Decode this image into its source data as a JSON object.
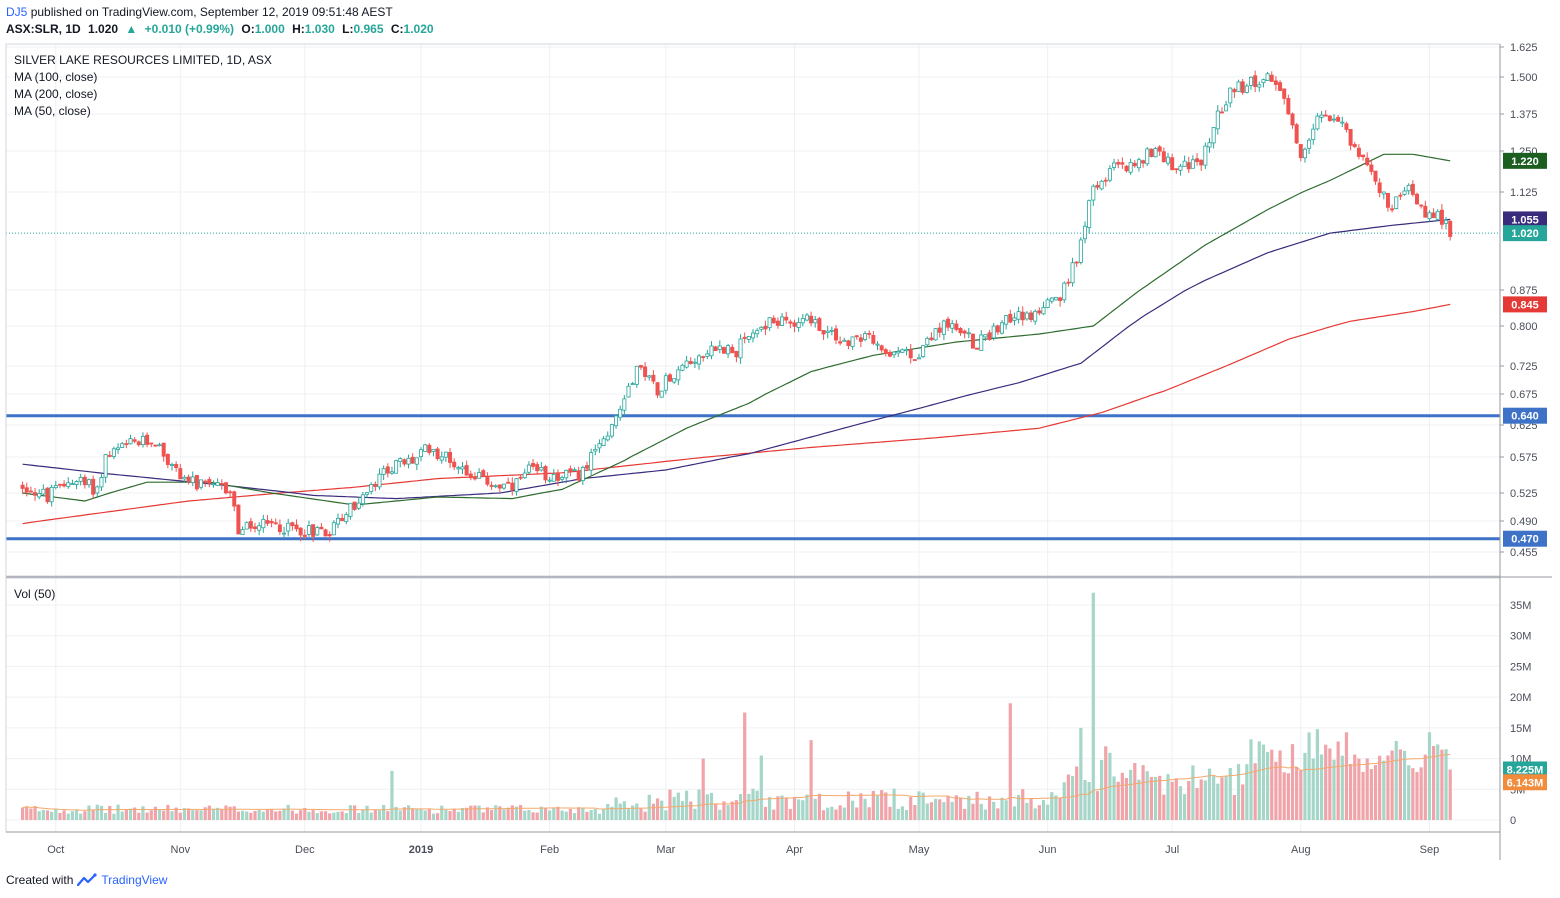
{
  "header": {
    "author": "DJ5",
    "published": "published on TradingView.com, September 12, 2019 09:51:48 AEST",
    "symbol": "ASX:SLR, 1D",
    "last": "1.020",
    "change": "+0.010 (+0.99%)",
    "o_label": "O:",
    "o": "1.000",
    "h_label": "H:",
    "h": "1.030",
    "l_label": "L:",
    "l": "0.965",
    "c_label": "C:",
    "c": "1.020"
  },
  "legend": {
    "title": "SILVER LAKE RESOURCES LIMITED, 1D, ASX",
    "ma100": "MA (100, close)",
    "ma200": "MA (200, close)",
    "ma50": "MA (50, close)",
    "volume": "Vol (50)"
  },
  "footer": {
    "created": "Created with",
    "brand": "TradingView"
  },
  "colors": {
    "up": "#26a69a",
    "down": "#ef5350",
    "ma50": "#2f6b2f",
    "ma100": "#3a2c7c",
    "ma200": "#e53935",
    "hline": "#3d72c7",
    "vol_up": "#a5d6c8",
    "vol_down": "#f0a3a8",
    "vol_ma": "#f3a96b"
  },
  "chart_data": {
    "type": "candlestick",
    "x_labels": [
      "Oct",
      "Nov",
      "Dec",
      "2019",
      "Feb",
      "Mar",
      "Apr",
      "May",
      "Jun",
      "Jul",
      "Aug",
      "Sep"
    ],
    "x_label_days": [
      8,
      38,
      68,
      96,
      127,
      155,
      186,
      216,
      247,
      277,
      308,
      339
    ],
    "price_ticks": [
      "1.625",
      "1.500",
      "1.375",
      "1.250",
      "1.125",
      "0.875",
      "0.800",
      "0.725",
      "0.675",
      "0.625",
      "0.575",
      "0.525",
      "0.490",
      "0.455"
    ],
    "price_range": [
      0.43,
      1.63
    ],
    "volume_ticks": [
      "35M",
      "30M",
      "25M",
      "20M",
      "15M",
      "10M",
      "5M",
      "0"
    ],
    "volume_range": [
      0,
      38000000
    ],
    "horizontal_lines": [
      0.64,
      0.47
    ],
    "price_labels": [
      {
        "value": 1.22,
        "text": "1.220",
        "color": "#1b5e20"
      },
      {
        "value": 1.055,
        "text": "1.055",
        "color": "#3a2c7c"
      },
      {
        "value": 1.02,
        "text": "1.020",
        "color": "#26a69a"
      },
      {
        "value": 0.845,
        "text": "0.845",
        "color": "#e53935"
      },
      {
        "value": 0.64,
        "text": "0.640",
        "color": "#3d72c7"
      },
      {
        "value": 0.47,
        "text": "0.470",
        "color": "#3d72c7"
      }
    ],
    "volume_labels": [
      {
        "value": 8225000,
        "text": "8.225M",
        "color": "#26a69a"
      },
      {
        "value": 6143000,
        "text": "6.143M",
        "color": "#f08c3b"
      }
    ],
    "last_price": 1.02,
    "anchors": [
      {
        "d": 0,
        "p": 0.535
      },
      {
        "d": 6,
        "p": 0.52
      },
      {
        "d": 12,
        "p": 0.545
      },
      {
        "d": 18,
        "p": 0.53
      },
      {
        "d": 20,
        "p": 0.575
      },
      {
        "d": 26,
        "p": 0.595
      },
      {
        "d": 32,
        "p": 0.6
      },
      {
        "d": 36,
        "p": 0.56
      },
      {
        "d": 42,
        "p": 0.535
      },
      {
        "d": 50,
        "p": 0.53
      },
      {
        "d": 52,
        "p": 0.48
      },
      {
        "d": 60,
        "p": 0.485
      },
      {
        "d": 68,
        "p": 0.48
      },
      {
        "d": 74,
        "p": 0.48
      },
      {
        "d": 80,
        "p": 0.51
      },
      {
        "d": 84,
        "p": 0.53
      },
      {
        "d": 88,
        "p": 0.56
      },
      {
        "d": 94,
        "p": 0.57
      },
      {
        "d": 98,
        "p": 0.59
      },
      {
        "d": 106,
        "p": 0.56
      },
      {
        "d": 112,
        "p": 0.54
      },
      {
        "d": 118,
        "p": 0.53
      },
      {
        "d": 122,
        "p": 0.555
      },
      {
        "d": 128,
        "p": 0.55
      },
      {
        "d": 134,
        "p": 0.55
      },
      {
        "d": 138,
        "p": 0.58
      },
      {
        "d": 143,
        "p": 0.64
      },
      {
        "d": 148,
        "p": 0.72
      },
      {
        "d": 153,
        "p": 0.685
      },
      {
        "d": 158,
        "p": 0.72
      },
      {
        "d": 166,
        "p": 0.76
      },
      {
        "d": 172,
        "p": 0.755
      },
      {
        "d": 178,
        "p": 0.8
      },
      {
        "d": 184,
        "p": 0.815
      },
      {
        "d": 190,
        "p": 0.81
      },
      {
        "d": 196,
        "p": 0.775
      },
      {
        "d": 204,
        "p": 0.775
      },
      {
        "d": 210,
        "p": 0.74
      },
      {
        "d": 216,
        "p": 0.75
      },
      {
        "d": 222,
        "p": 0.81
      },
      {
        "d": 230,
        "p": 0.765
      },
      {
        "d": 236,
        "p": 0.81
      },
      {
        "d": 244,
        "p": 0.825
      },
      {
        "d": 250,
        "p": 0.855
      },
      {
        "d": 254,
        "p": 0.96
      },
      {
        "d": 258,
        "p": 1.13
      },
      {
        "d": 264,
        "p": 1.22
      },
      {
        "d": 268,
        "p": 1.2
      },
      {
        "d": 272,
        "p": 1.25
      },
      {
        "d": 278,
        "p": 1.2
      },
      {
        "d": 284,
        "p": 1.21
      },
      {
        "d": 288,
        "p": 1.38
      },
      {
        "d": 292,
        "p": 1.47
      },
      {
        "d": 298,
        "p": 1.48
      },
      {
        "d": 302,
        "p": 1.5
      },
      {
        "d": 308,
        "p": 1.23
      },
      {
        "d": 312,
        "p": 1.37
      },
      {
        "d": 318,
        "p": 1.33
      },
      {
        "d": 322,
        "p": 1.25
      },
      {
        "d": 326,
        "p": 1.14
      },
      {
        "d": 330,
        "p": 1.08
      },
      {
        "d": 334,
        "p": 1.14
      },
      {
        "d": 338,
        "p": 1.07
      },
      {
        "d": 342,
        "p": 1.06
      },
      {
        "d": 344,
        "p": 1.02
      }
    ],
    "ma200_points": [
      {
        "d": 0,
        "v": 0.487
      },
      {
        "d": 40,
        "v": 0.515
      },
      {
        "d": 80,
        "v": 0.533
      },
      {
        "d": 100,
        "v": 0.545
      },
      {
        "d": 130,
        "v": 0.553
      },
      {
        "d": 160,
        "v": 0.572
      },
      {
        "d": 190,
        "v": 0.59
      },
      {
        "d": 220,
        "v": 0.605
      },
      {
        "d": 245,
        "v": 0.62
      },
      {
        "d": 260,
        "v": 0.645
      },
      {
        "d": 275,
        "v": 0.68
      },
      {
        "d": 290,
        "v": 0.725
      },
      {
        "d": 305,
        "v": 0.775
      },
      {
        "d": 320,
        "v": 0.81
      },
      {
        "d": 335,
        "v": 0.83
      },
      {
        "d": 344,
        "v": 0.845
      }
    ],
    "ma100_points": [
      {
        "d": 0,
        "v": 0.565
      },
      {
        "d": 20,
        "v": 0.552
      },
      {
        "d": 50,
        "v": 0.535
      },
      {
        "d": 70,
        "v": 0.522
      },
      {
        "d": 90,
        "v": 0.518
      },
      {
        "d": 115,
        "v": 0.525
      },
      {
        "d": 135,
        "v": 0.545
      },
      {
        "d": 155,
        "v": 0.557
      },
      {
        "d": 175,
        "v": 0.58
      },
      {
        "d": 195,
        "v": 0.615
      },
      {
        "d": 215,
        "v": 0.65
      },
      {
        "d": 240,
        "v": 0.695
      },
      {
        "d": 255,
        "v": 0.73
      },
      {
        "d": 270,
        "v": 0.82
      },
      {
        "d": 285,
        "v": 0.9
      },
      {
        "d": 300,
        "v": 0.97
      },
      {
        "d": 315,
        "v": 1.02
      },
      {
        "d": 330,
        "v": 1.04
      },
      {
        "d": 344,
        "v": 1.055
      }
    ],
    "ma50_points": [
      {
        "d": 0,
        "v": 0.525
      },
      {
        "d": 15,
        "v": 0.515
      },
      {
        "d": 30,
        "v": 0.54
      },
      {
        "d": 45,
        "v": 0.54
      },
      {
        "d": 60,
        "v": 0.525
      },
      {
        "d": 80,
        "v": 0.51
      },
      {
        "d": 100,
        "v": 0.52
      },
      {
        "d": 118,
        "v": 0.518
      },
      {
        "d": 130,
        "v": 0.53
      },
      {
        "d": 145,
        "v": 0.57
      },
      {
        "d": 160,
        "v": 0.62
      },
      {
        "d": 175,
        "v": 0.66
      },
      {
        "d": 190,
        "v": 0.715
      },
      {
        "d": 205,
        "v": 0.745
      },
      {
        "d": 225,
        "v": 0.77
      },
      {
        "d": 245,
        "v": 0.785
      },
      {
        "d": 258,
        "v": 0.8
      },
      {
        "d": 270,
        "v": 0.88
      },
      {
        "d": 285,
        "v": 0.99
      },
      {
        "d": 300,
        "v": 1.08
      },
      {
        "d": 315,
        "v": 1.16
      },
      {
        "d": 328,
        "v": 1.24
      },
      {
        "d": 335,
        "v": 1.24
      },
      {
        "d": 344,
        "v": 1.22
      }
    ],
    "volume_spikes": [
      {
        "d": 89,
        "v": 8000000
      },
      {
        "d": 164,
        "v": 10000000
      },
      {
        "d": 174,
        "v": 17500000
      },
      {
        "d": 178,
        "v": 10500000
      },
      {
        "d": 190,
        "v": 13000000
      },
      {
        "d": 238,
        "v": 19000000
      },
      {
        "d": 255,
        "v": 15000000
      },
      {
        "d": 258,
        "v": 37000000
      },
      {
        "d": 261,
        "v": 12000000
      },
      {
        "d": 298,
        "v": 12800000
      },
      {
        "d": 341,
        "v": 12300000
      },
      {
        "d": 344,
        "v": 8225000
      }
    ]
  }
}
